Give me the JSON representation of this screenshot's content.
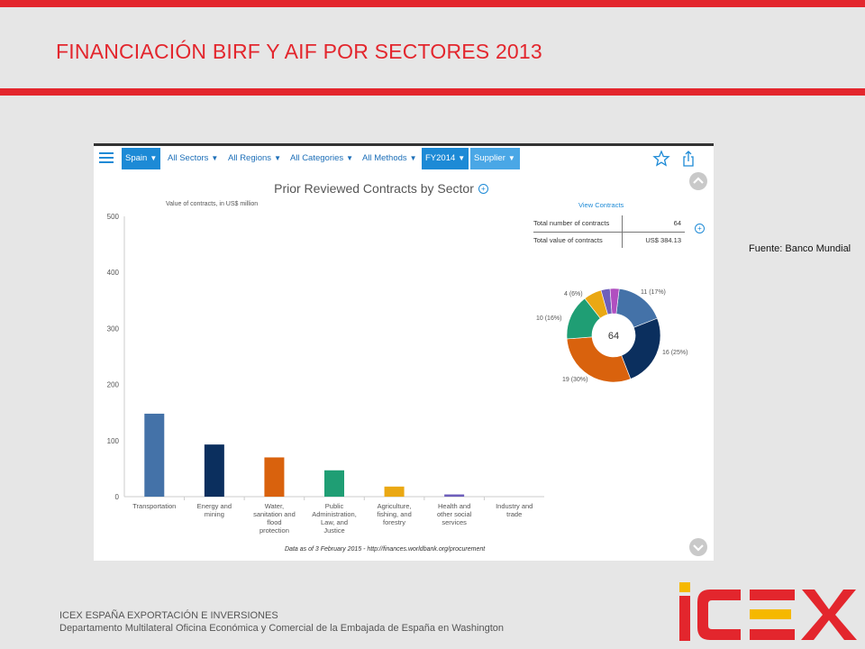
{
  "slide": {
    "title": "FINANCIACIÓN BIRF Y AIF POR SECTORES 2013",
    "source_note": "Fuente: Banco Mundial",
    "footer_line1": "ICEX ESPAÑA EXPORTACIÓN  E INVERSIONES",
    "footer_line2": "Departamento Multilateral Oficina Económica y Comercial de la Embajada de España en Washington",
    "logo_text": "ICEX",
    "colors": {
      "accent": "#e3262d",
      "logo_red": "#e3262d",
      "logo_yellow": "#f5b800"
    }
  },
  "app": {
    "toolbar": {
      "filters": [
        {
          "label": "Spain",
          "selected": true
        },
        {
          "label": "All Sectors",
          "selected": false
        },
        {
          "label": "All Regions",
          "selected": false
        },
        {
          "label": "All Categories",
          "selected": false
        },
        {
          "label": "All Methods",
          "selected": false
        },
        {
          "label": "FY2014",
          "selected": true
        },
        {
          "label": "Supplier",
          "selected": true
        }
      ],
      "icons": [
        "menu-icon",
        "star-icon",
        "share-icon"
      ]
    },
    "chart_title": "Prior Reviewed Contracts by Sector",
    "data_note": "Data as of 3 February 2015 - http://finances.worldbank.org/procurement",
    "view_contracts": "View Contracts",
    "stats": [
      {
        "label": "Total number of contracts",
        "value": "64"
      },
      {
        "label": "Total value of contracts",
        "value": "US$ 384.13"
      }
    ]
  },
  "chart_data": [
    {
      "type": "bar",
      "title": "Prior Reviewed Contracts by Sector",
      "ylabel": "Value of contracts, in US$ million",
      "ylim": [
        0,
        500
      ],
      "yticks": [
        0,
        100,
        200,
        300,
        400,
        500
      ],
      "categories": [
        "Transportation",
        "Energy and mining",
        "Water, sanitation and flood protection",
        "Public Administration, Law, and Justice",
        "Agriculture, fishing, and forestry",
        "Health and other social services",
        "Industry and trade"
      ],
      "category_lines": [
        [
          "Transportation"
        ],
        [
          "Energy and",
          "mining"
        ],
        [
          "Water,",
          "sanitation and",
          "flood",
          "protection"
        ],
        [
          "Public",
          "Administration,",
          "Law, and",
          "Justice"
        ],
        [
          "Agriculture,",
          "fishing, and",
          "forestry"
        ],
        [
          "Health and",
          "other social",
          "services"
        ],
        [
          "Industry and",
          "trade"
        ]
      ],
      "values": [
        148,
        93,
        70,
        47,
        18,
        4,
        0
      ],
      "colors": [
        "#4472a8",
        "#0b2f5e",
        "#d9620d",
        "#1f9e74",
        "#eaa813",
        "#6e5fbb",
        "#999999"
      ],
      "grid": false
    },
    {
      "type": "pie",
      "donut": true,
      "center_label": "64",
      "slices": [
        {
          "label": "11 (17%)",
          "value": 11,
          "color": "#4472a8"
        },
        {
          "label": "16 (25%)",
          "value": 16,
          "color": "#0b2f5e"
        },
        {
          "label": "19 (30%)",
          "value": 19,
          "color": "#d9620d"
        },
        {
          "label": "10 (16%)",
          "value": 10,
          "color": "#1f9e74"
        },
        {
          "label": "4 (6%)",
          "value": 4,
          "color": "#eaa813"
        },
        {
          "label": "",
          "value": 2,
          "color": "#6e5fbb"
        },
        {
          "label": "",
          "value": 2,
          "color": "#b04fc0"
        }
      ]
    }
  ]
}
